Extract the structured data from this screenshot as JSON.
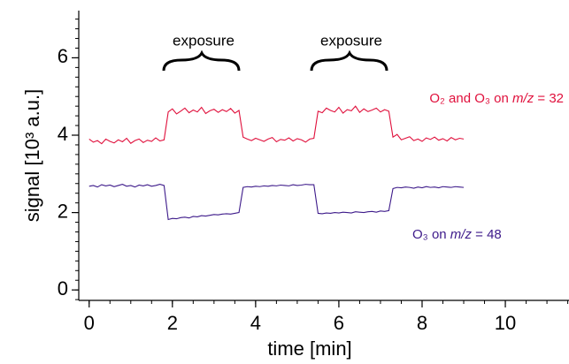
{
  "chart_data": {
    "type": "line",
    "xlabel": "time [min]",
    "ylabel": "signal [10³ a.u.]",
    "annotations": [
      "exposure",
      "exposure"
    ],
    "x": [
      0,
      0.1,
      0.2,
      0.3,
      0.4,
      0.5,
      0.6,
      0.7,
      0.8,
      0.9,
      1,
      1.1,
      1.2,
      1.3,
      1.4,
      1.5,
      1.6,
      1.7,
      1.8,
      1.9,
      2,
      2.1,
      2.2,
      2.3,
      2.4,
      2.5,
      2.6,
      2.7,
      2.8,
      2.9,
      3,
      3.1,
      3.2,
      3.3,
      3.4,
      3.5,
      3.6,
      3.7,
      3.8,
      3.9,
      4,
      4.1,
      4.2,
      4.3,
      4.4,
      4.5,
      4.6,
      4.7,
      4.8,
      4.9,
      5,
      5.1,
      5.2,
      5.3,
      5.4,
      5.5,
      5.6,
      5.7,
      5.8,
      5.9,
      6,
      6.1,
      6.2,
      6.3,
      6.4,
      6.5,
      6.6,
      6.7,
      6.8,
      6.9,
      7,
      7.1,
      7.2,
      7.3,
      7.4,
      7.5,
      7.6,
      7.7,
      7.8,
      7.9,
      8,
      8.1,
      8.2,
      8.3,
      8.4,
      8.5,
      8.6,
      8.7,
      8.8,
      8.9,
      9
    ],
    "series": [
      {
        "name": "O₂ and O₃ on m/z = 32",
        "color": "#e0103c",
        "values": [
          3.9,
          3.82,
          3.86,
          3.78,
          3.9,
          3.84,
          3.8,
          3.88,
          3.83,
          3.92,
          3.79,
          3.86,
          3.9,
          3.81,
          3.87,
          3.84,
          3.93,
          3.85,
          3.88,
          4.6,
          4.68,
          4.55,
          4.62,
          4.7,
          4.58,
          4.65,
          4.6,
          4.72,
          4.56,
          4.63,
          4.67,
          4.59,
          4.66,
          4.61,
          4.69,
          4.57,
          4.64,
          3.95,
          3.9,
          3.86,
          3.92,
          3.88,
          3.84,
          3.9,
          3.94,
          3.83,
          3.89,
          3.87,
          3.93,
          3.85,
          3.91,
          3.88,
          3.82,
          3.9,
          3.92,
          4.62,
          4.58,
          4.7,
          4.64,
          4.6,
          4.72,
          4.57,
          4.66,
          4.63,
          4.75,
          4.59,
          4.68,
          4.61,
          4.65,
          4.7,
          4.6,
          4.66,
          4.62,
          3.95,
          4.02,
          3.88,
          3.92,
          3.96,
          3.86,
          3.9,
          3.84,
          3.93,
          3.89,
          3.95,
          3.87,
          3.91,
          3.85,
          3.94,
          3.88,
          3.92,
          3.9
        ]
      },
      {
        "name": "O₃ on m/z = 48",
        "color": "#3d1a8a",
        "values": [
          2.68,
          2.7,
          2.66,
          2.72,
          2.69,
          2.71,
          2.67,
          2.7,
          2.73,
          2.68,
          2.7,
          2.66,
          2.71,
          2.69,
          2.72,
          2.68,
          2.7,
          2.73,
          2.7,
          1.82,
          1.85,
          1.84,
          1.87,
          1.88,
          1.86,
          1.9,
          1.89,
          1.92,
          1.91,
          1.93,
          1.95,
          1.94,
          1.96,
          1.97,
          1.96,
          1.98,
          2.0,
          2.65,
          2.67,
          2.66,
          2.68,
          2.67,
          2.69,
          2.68,
          2.7,
          2.69,
          2.71,
          2.7,
          2.69,
          2.72,
          2.7,
          2.71,
          2.73,
          2.72,
          2.72,
          1.98,
          1.97,
          1.99,
          1.98,
          2.0,
          1.99,
          2.01,
          2.0,
          1.99,
          2.02,
          2.01,
          2.0,
          2.02,
          2.03,
          2.01,
          2.04,
          2.03,
          2.05,
          2.62,
          2.65,
          2.64,
          2.66,
          2.65,
          2.63,
          2.66,
          2.64,
          2.67,
          2.65,
          2.66,
          2.64,
          2.67,
          2.66,
          2.65,
          2.67,
          2.66,
          2.65
        ]
      }
    ],
    "xlim": [
      -0.25,
      11.53
    ],
    "xticks": [
      0,
      2,
      4,
      6,
      8,
      10
    ],
    "ylim": [
      -0.27,
      7.22
    ],
    "yticks": [
      0,
      2,
      4,
      6
    ],
    "grid": false
  }
}
